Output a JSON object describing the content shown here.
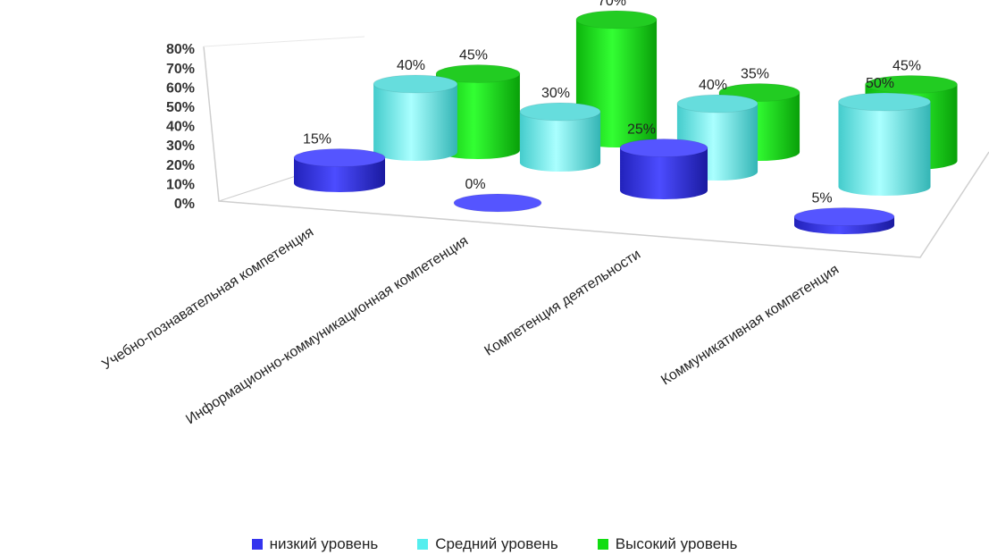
{
  "chart_data": {
    "type": "bar",
    "categories": [
      "Учебно-познавательная компетенция",
      "Информационно-коммуникационная компетенция",
      "Компетенция деятельности",
      "Коммуникативная компетенция"
    ],
    "series": [
      {
        "name": "низкий уровень",
        "values": [
          15,
          0,
          25,
          5
        ],
        "color": "#3333ee",
        "labels": [
          "15%",
          "0%",
          "25%",
          "5%"
        ]
      },
      {
        "name": "Средний уровень",
        "values": [
          40,
          30,
          40,
          50
        ],
        "color": "#55eeee",
        "labels": [
          "40%",
          "30%",
          "40%",
          "50%"
        ]
      },
      {
        "name": "Высокий уровень",
        "values": [
          45,
          70,
          35,
          45
        ],
        "color": "#11dd11",
        "labels": [
          "45%",
          "70%",
          "35%",
          "45%"
        ]
      }
    ],
    "yticks": [
      "0%",
      "10%",
      "20%",
      "30%",
      "40%",
      "50%",
      "60%",
      "70%",
      "80%"
    ],
    "ylim": [
      0,
      80
    ],
    "legend_position": "bottom",
    "bar_shape": "cylinder",
    "perspective": "3d"
  }
}
